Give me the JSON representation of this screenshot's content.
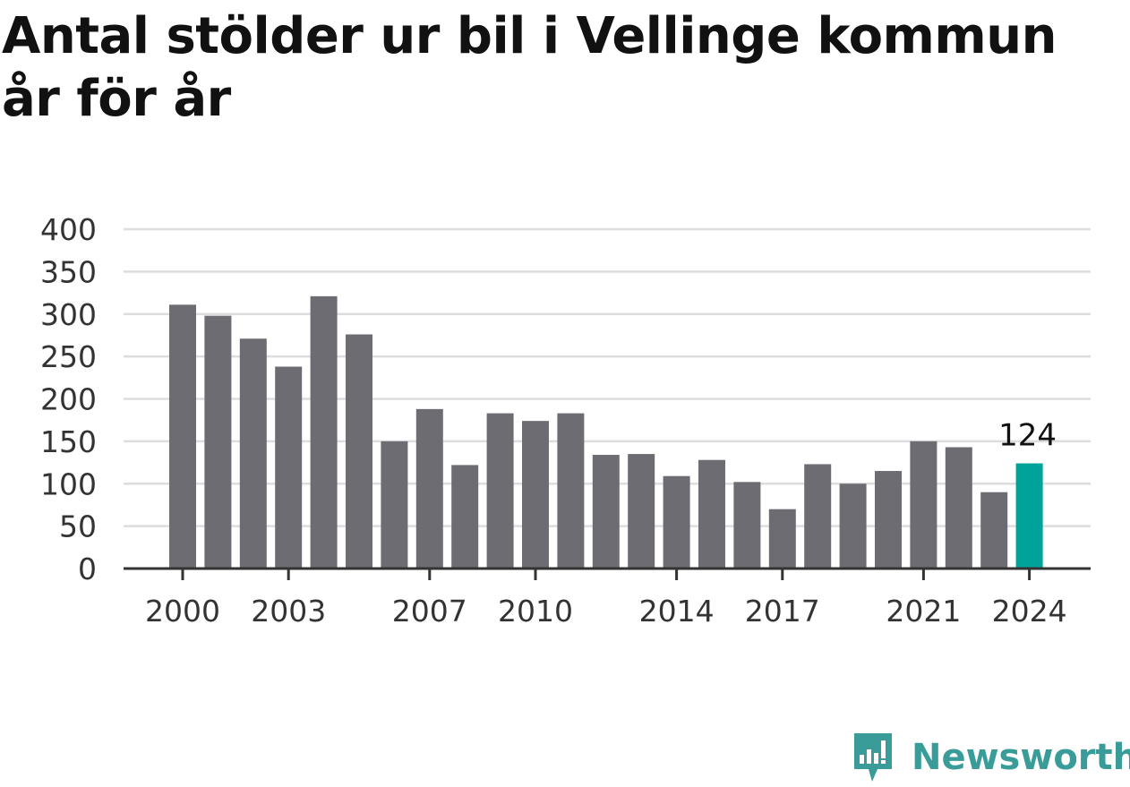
{
  "title": "Antal stölder ur bil i Vellinge kommun år för år",
  "brand": {
    "name": "Newsworthy",
    "icon": "newsworthy-logo-icon",
    "color": "#3a9c98"
  },
  "chart_data": {
    "type": "bar",
    "title": "Antal stölder ur bil i Vellinge kommun år för år",
    "xlabel": "",
    "ylabel": "",
    "ylim": [
      0,
      400
    ],
    "yticks": [
      "0",
      "50",
      "100",
      "150",
      "200",
      "250",
      "300",
      "350",
      "400"
    ],
    "grid": true,
    "categories": [
      "2000",
      "2001",
      "2002",
      "2003",
      "2004",
      "2005",
      "2006",
      "2007",
      "2008",
      "2009",
      "2010",
      "2011",
      "2012",
      "2013",
      "2014",
      "2015",
      "2016",
      "2017",
      "2018",
      "2019",
      "2020",
      "2021",
      "2022",
      "2023",
      "2024"
    ],
    "xticks_shown": [
      "2000",
      "2003",
      "2007",
      "2010",
      "2014",
      "2017",
      "2021",
      "2024"
    ],
    "values": [
      311,
      298,
      271,
      238,
      321,
      276,
      150,
      188,
      122,
      183,
      174,
      183,
      134,
      135,
      109,
      128,
      102,
      70,
      123,
      100,
      115,
      150,
      143,
      90,
      124
    ],
    "highlight_index": 24,
    "highlight_label": "124",
    "colors": {
      "bar": "#6d6c73",
      "highlight": "#00a39a",
      "grid": "#dddddd",
      "axis": "#333333"
    }
  }
}
